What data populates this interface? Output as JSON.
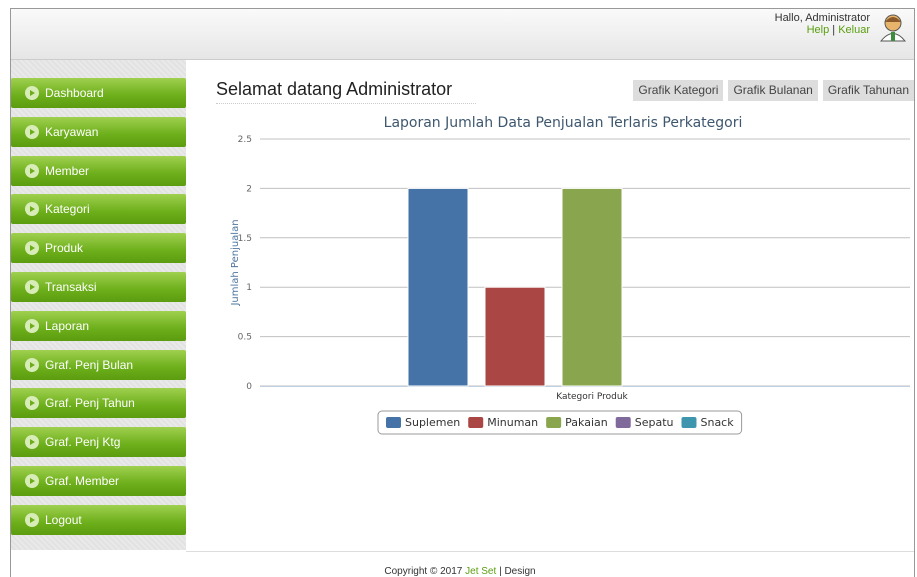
{
  "header": {
    "greeting": "Hallo, Administrator",
    "links": [
      "Help",
      "Keluar"
    ],
    "separator": "|"
  },
  "menu": [
    "Dashboard",
    "Karyawan",
    "Member",
    "Kategori",
    "Produk",
    "Transaksi",
    "Laporan",
    "Graf. Penj Bulan",
    "Graf. Penj Tahun",
    "Graf. Penj Ktg",
    "Graf. Member",
    "Logout"
  ],
  "page": {
    "title": "Selamat datang Administrator",
    "buttons": [
      "Grafik Kategori",
      "Grafik Bulanan",
      "Grafik Tahunan"
    ]
  },
  "chart_data": {
    "type": "bar",
    "title": "Laporan Jumlah Data Penjualan Terlaris Perkategori",
    "y_label": "Jumlah Penjualan",
    "x_label": "Kategori Produk",
    "categories": [
      null
    ],
    "series": [
      {
        "name": "Suplemen",
        "color": "#4572a7",
        "values": [
          2
        ]
      },
      {
        "name": "Minuman",
        "color": "#aa4643",
        "values": [
          1
        ]
      },
      {
        "name": "Pakaian",
        "color": "#89a54e",
        "values": [
          2
        ]
      },
      {
        "name": "Sepatu",
        "color": "#80699b",
        "values": [
          0
        ]
      },
      {
        "name": "Snack",
        "color": "#3d96ae",
        "values": [
          0
        ]
      }
    ],
    "ylim": [
      0,
      2.5
    ],
    "yticks": [
      0,
      0.5,
      1,
      1.5,
      2,
      2.5
    ],
    "grid": true
  },
  "footer": {
    "copyright": "Copyright © 2017",
    "brand": "Jet Set",
    "separator": "|",
    "design": "Design"
  }
}
